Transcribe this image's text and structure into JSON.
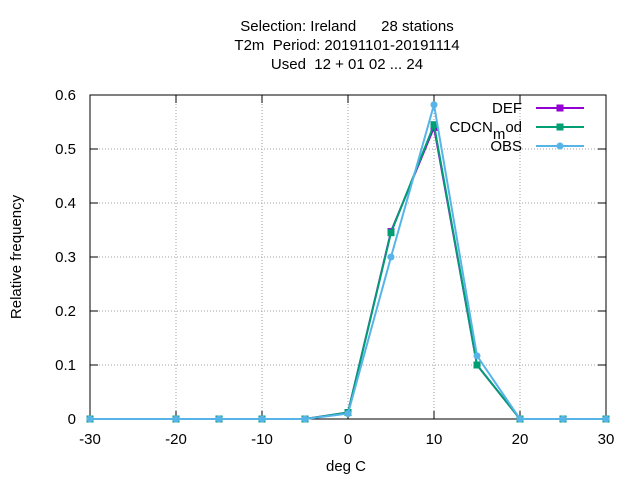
{
  "chart_data": {
    "type": "line",
    "title_lines": [
      "Selection: Ireland      28 stations",
      "T2m  Period: 20191101-20191114",
      "Used  12 + 01 02 ... 24"
    ],
    "xlabel": "deg C",
    "ylabel": "Relative frequency",
    "xlim": [
      -30,
      30
    ],
    "ylim": [
      0,
      0.6
    ],
    "xticks": [
      -30,
      -20,
      -10,
      0,
      10,
      20,
      30
    ],
    "yticks": [
      0,
      0.1,
      0.2,
      0.3,
      0.4,
      0.5,
      0.6
    ],
    "xtick_labels": [
      "-30",
      "-20",
      "-10",
      "0",
      "10",
      "20",
      "30"
    ],
    "ytick_labels": [
      "0",
      "0.1",
      "0.2",
      "0.3",
      "0.4",
      "0.5",
      "0.6"
    ],
    "grid": true,
    "legend_position": "top-right",
    "x": [
      -30,
      -20,
      -15,
      -10,
      -5,
      0,
      5,
      10,
      15,
      20,
      25,
      30
    ],
    "series": [
      {
        "name": "DEF",
        "legend_parts": [
          "DEF"
        ],
        "color": "#9400d3",
        "marker": "square",
        "values": [
          0,
          0,
          0,
          0,
          0,
          0.012,
          0.347,
          0.54,
          0.1,
          0,
          0,
          0
        ]
      },
      {
        "name": "CDCN mod",
        "legend_parts": [
          "CDCN",
          "m",
          "od"
        ],
        "color": "#009e73",
        "marker": "square",
        "values": [
          0,
          0,
          0,
          0,
          0,
          0.012,
          0.345,
          0.545,
          0.1,
          0,
          0,
          0
        ]
      },
      {
        "name": "OBS",
        "legend_parts": [
          "OBS"
        ],
        "color": "#56b4e9",
        "marker": "circle",
        "values": [
          0,
          0,
          0,
          0,
          0,
          0.01,
          0.3,
          0.582,
          0.117,
          0,
          0,
          0
        ]
      }
    ]
  }
}
